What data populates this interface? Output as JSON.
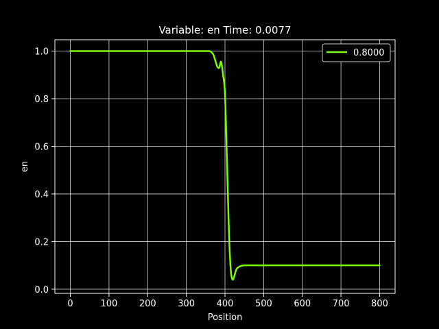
{
  "chart_data": {
    "type": "line",
    "title": "Variable: en Time: 0.0077",
    "xlabel": "Position",
    "ylabel": "en",
    "xlim": [
      -40,
      840
    ],
    "ylim": [
      -0.0175,
      1.0475
    ],
    "xticks": [
      0,
      100,
      200,
      300,
      400,
      500,
      600,
      700,
      800
    ],
    "yticks": [
      0.0,
      0.2,
      0.4,
      0.6,
      0.8,
      1.0
    ],
    "xtick_labels": [
      "0",
      "100",
      "200",
      "300",
      "400",
      "500",
      "600",
      "700",
      "800"
    ],
    "ytick_labels": [
      "0.0",
      "0.2",
      "0.4",
      "0.6",
      "0.8",
      "1.0"
    ],
    "grid": true,
    "legend_position": "upper-right",
    "background": "#000000",
    "foreground": "#ffffff",
    "series": [
      {
        "name": "0.8000",
        "color": "#7cfc00",
        "x": [
          0,
          100,
          200,
          300,
          350,
          360,
          365,
          370,
          375,
          380,
          385,
          390,
          395,
          400,
          405,
          410,
          415,
          420,
          425,
          430,
          440,
          450,
          460,
          500,
          600,
          700,
          800
        ],
        "y": [
          1.0,
          1.0,
          1.0,
          1.0,
          1.0,
          1.0,
          0.995,
          0.985,
          0.96,
          0.935,
          0.93,
          0.955,
          0.9,
          0.82,
          0.55,
          0.25,
          0.08,
          0.04,
          0.06,
          0.085,
          0.097,
          0.1,
          0.1,
          0.1,
          0.1,
          0.1,
          0.1
        ]
      }
    ]
  }
}
